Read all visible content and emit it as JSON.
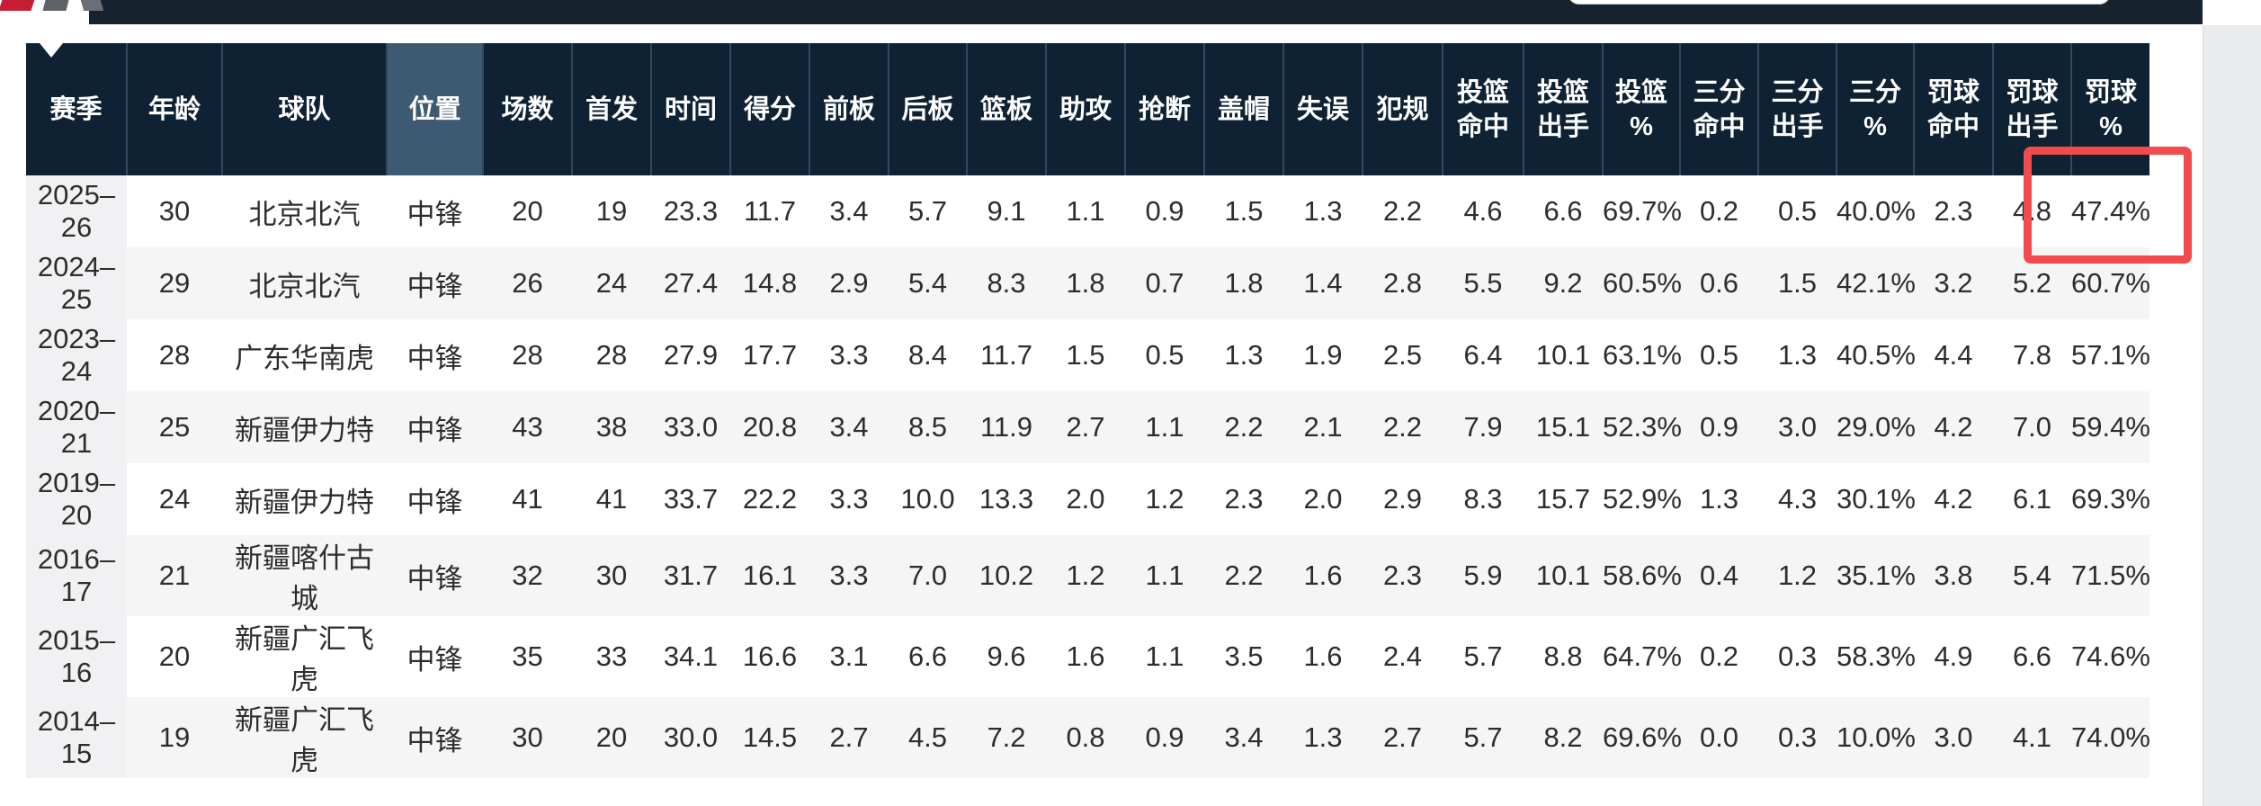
{
  "navbar": {
    "background": "#16222e",
    "logo_icon": "site-logo",
    "search": {
      "value": "",
      "placeholder": ""
    }
  },
  "page": {
    "background": "#ffffff",
    "right_gutter_color": "#e9ebee"
  },
  "table": {
    "header_bg": "#0e2233",
    "header_text_color": "#ffffff",
    "highlighted_column": "position",
    "highlight_bg": "#3e5a72",
    "alt_row_bg": "#f5f5f6",
    "first_column_bg": "#f1f1f3",
    "columns": [
      {
        "key": "season",
        "label": "赛季"
      },
      {
        "key": "age",
        "label": "年龄"
      },
      {
        "key": "team",
        "label": "球队"
      },
      {
        "key": "position",
        "label": "位置"
      },
      {
        "key": "games",
        "label": "场数"
      },
      {
        "key": "starts",
        "label": "首发"
      },
      {
        "key": "minutes",
        "label": "时间"
      },
      {
        "key": "points",
        "label": "得分"
      },
      {
        "key": "oreb",
        "label": "前板"
      },
      {
        "key": "dreb",
        "label": "后板"
      },
      {
        "key": "reb",
        "label": "篮板"
      },
      {
        "key": "ast",
        "label": "助攻"
      },
      {
        "key": "stl",
        "label": "抢断"
      },
      {
        "key": "blk",
        "label": "盖帽"
      },
      {
        "key": "tov",
        "label": "失误"
      },
      {
        "key": "pf",
        "label": "犯规"
      },
      {
        "key": "fgm",
        "label": "投篮\n命中"
      },
      {
        "key": "fga",
        "label": "投篮\n出手"
      },
      {
        "key": "fg_pct",
        "label": "投篮\n%"
      },
      {
        "key": "tpm",
        "label": "三分\n命中"
      },
      {
        "key": "tpa",
        "label": "三分\n出手"
      },
      {
        "key": "tp_pct",
        "label": "三分\n%"
      },
      {
        "key": "ftm",
        "label": "罚球\n命中"
      },
      {
        "key": "fta",
        "label": "罚球\n出手"
      },
      {
        "key": "ft_pct",
        "label": "罚球\n%"
      }
    ],
    "rows": [
      [
        "2025–26",
        "30",
        "北京北汽",
        "中锋",
        "20",
        "19",
        "23.3",
        "11.7",
        "3.4",
        "5.7",
        "9.1",
        "1.1",
        "0.9",
        "1.5",
        "1.3",
        "2.2",
        "4.6",
        "6.6",
        "69.7%",
        "0.2",
        "0.5",
        "40.0%",
        "2.3",
        "4.8",
        "47.4%"
      ],
      [
        "2024–25",
        "29",
        "北京北汽",
        "中锋",
        "26",
        "24",
        "27.4",
        "14.8",
        "2.9",
        "5.4",
        "8.3",
        "1.8",
        "0.7",
        "1.8",
        "1.4",
        "2.8",
        "5.5",
        "9.2",
        "60.5%",
        "0.6",
        "1.5",
        "42.1%",
        "3.2",
        "5.2",
        "60.7%"
      ],
      [
        "2023–24",
        "28",
        "广东华南虎",
        "中锋",
        "28",
        "28",
        "27.9",
        "17.7",
        "3.3",
        "8.4",
        "11.7",
        "1.5",
        "0.5",
        "1.3",
        "1.9",
        "2.5",
        "6.4",
        "10.1",
        "63.1%",
        "0.5",
        "1.3",
        "40.5%",
        "4.4",
        "7.8",
        "57.1%"
      ],
      [
        "2020–21",
        "25",
        "新疆伊力特",
        "中锋",
        "43",
        "38",
        "33.0",
        "20.8",
        "3.4",
        "8.5",
        "11.9",
        "2.7",
        "1.1",
        "2.2",
        "2.1",
        "2.2",
        "7.9",
        "15.1",
        "52.3%",
        "0.9",
        "3.0",
        "29.0%",
        "4.2",
        "7.0",
        "59.4%"
      ],
      [
        "2019–20",
        "24",
        "新疆伊力特",
        "中锋",
        "41",
        "41",
        "33.7",
        "22.2",
        "3.3",
        "10.0",
        "13.3",
        "2.0",
        "1.2",
        "2.3",
        "2.0",
        "2.9",
        "8.3",
        "15.7",
        "52.9%",
        "1.3",
        "4.3",
        "30.1%",
        "4.2",
        "6.1",
        "69.3%"
      ],
      [
        "2016–17",
        "21",
        "新疆喀什古城",
        "中锋",
        "32",
        "30",
        "31.7",
        "16.1",
        "3.3",
        "7.0",
        "10.2",
        "1.2",
        "1.1",
        "2.2",
        "1.6",
        "2.3",
        "5.9",
        "10.1",
        "58.6%",
        "0.4",
        "1.2",
        "35.1%",
        "3.8",
        "5.4",
        "71.5%"
      ],
      [
        "2015–16",
        "20",
        "新疆广汇飞虎",
        "中锋",
        "35",
        "33",
        "34.1",
        "16.6",
        "3.1",
        "6.6",
        "9.6",
        "1.6",
        "1.1",
        "3.5",
        "1.6",
        "2.4",
        "5.7",
        "8.8",
        "64.7%",
        "0.2",
        "0.3",
        "58.3%",
        "4.9",
        "6.6",
        "74.6%"
      ],
      [
        "2014–15",
        "19",
        "新疆广汇飞虎",
        "中锋",
        "30",
        "20",
        "30.0",
        "14.5",
        "2.7",
        "4.5",
        "7.2",
        "0.8",
        "0.9",
        "3.4",
        "1.3",
        "2.7",
        "5.7",
        "8.2",
        "69.6%",
        "0.0",
        "0.3",
        "10.0%",
        "3.0",
        "4.1",
        "74.0%"
      ]
    ]
  },
  "annotation_box": {
    "color": "#f24b4c",
    "target_row": "2025–26",
    "target_columns": [
      "罚球出手",
      "罚球%"
    ]
  }
}
